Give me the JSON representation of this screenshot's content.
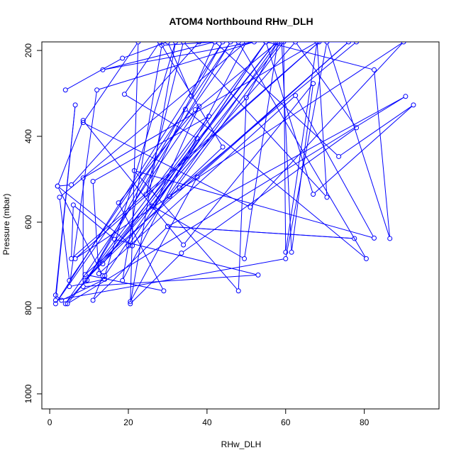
{
  "chart_data": {
    "type": "scatter",
    "title": "ATOM4 Northbound RHw_DLH",
    "xlabel": "RHw_DLH",
    "ylabel": "Pressure (mbar)",
    "xlim": [
      -2,
      99
    ],
    "ylim": [
      1035,
      180
    ],
    "y_reversed": true,
    "x_ticks": [
      "0",
      "20",
      "40",
      "60",
      "80"
    ],
    "x_tick_values": [
      0,
      20,
      40,
      60,
      80
    ],
    "y_ticks": [
      "200",
      "400",
      "600",
      "800",
      "1000"
    ],
    "y_tick_values": [
      200,
      400,
      600,
      800,
      1000
    ],
    "grid": false,
    "series": [
      {
        "color": "#0000ff",
        "marker": "open-circle",
        "connected": true,
        "points": [
          [
            4,
            292
          ],
          [
            18.5,
            218
          ],
          [
            30,
            180
          ],
          [
            36,
            306
          ],
          [
            42,
            180
          ],
          [
            13.5,
            245
          ],
          [
            52,
            180
          ],
          [
            12,
            292
          ],
          [
            5,
            750
          ],
          [
            14,
            733
          ],
          [
            3,
            782
          ],
          [
            1.5,
            770
          ],
          [
            6.5,
            327
          ],
          [
            1.5,
            782
          ],
          [
            60,
            685
          ],
          [
            70.5,
            180
          ],
          [
            86.5,
            638
          ],
          [
            82.5,
            245
          ],
          [
            55,
            180
          ],
          [
            26.5,
            565
          ],
          [
            38,
            330
          ],
          [
            4,
            790
          ],
          [
            62.5,
            180
          ],
          [
            78,
            380
          ],
          [
            33.5,
            672
          ],
          [
            20.5,
            790
          ],
          [
            32,
            180
          ],
          [
            14,
            725
          ],
          [
            37.5,
            405
          ],
          [
            19,
            302
          ],
          [
            28,
            180
          ],
          [
            44,
            425
          ],
          [
            33,
            520
          ],
          [
            9,
            735
          ],
          [
            40.5,
            353
          ],
          [
            11,
            505
          ],
          [
            12.5,
            720
          ],
          [
            62.5,
            305
          ],
          [
            82.5,
            637
          ],
          [
            21.5,
            480
          ],
          [
            48,
            760
          ],
          [
            50,
            310
          ],
          [
            58,
            180
          ],
          [
            37,
            338
          ],
          [
            17.5,
            555
          ],
          [
            29,
            760
          ],
          [
            9,
            722
          ],
          [
            76,
            180
          ],
          [
            37.5,
            495
          ],
          [
            20.5,
            785
          ],
          [
            22.5,
            180
          ],
          [
            8.5,
            368
          ],
          [
            51,
            565
          ],
          [
            90,
            180
          ],
          [
            6.5,
            685
          ],
          [
            68.5,
            180
          ],
          [
            5.5,
            685
          ],
          [
            6,
            560
          ],
          [
            16.5,
            640
          ],
          [
            53,
            723
          ],
          [
            8.5,
            750
          ],
          [
            8.5,
            497
          ],
          [
            68,
            180
          ],
          [
            70.5,
            542
          ],
          [
            34,
            180
          ],
          [
            24.5,
            535
          ],
          [
            34.5,
            337
          ],
          [
            80.5,
            685
          ],
          [
            48,
            180
          ],
          [
            1.5,
            790
          ],
          [
            44,
            180
          ],
          [
            9.5,
            735
          ],
          [
            46,
            180
          ],
          [
            5,
            736
          ],
          [
            2.5,
            542
          ],
          [
            50,
            180
          ],
          [
            18.5,
            736
          ],
          [
            28.5,
            188
          ],
          [
            42,
            180
          ],
          [
            73.5,
            447
          ],
          [
            92.5,
            327
          ],
          [
            67,
            535
          ],
          [
            55,
            180
          ],
          [
            13.5,
            697
          ],
          [
            57.5,
            180
          ],
          [
            4.5,
            790
          ],
          [
            90.5,
            307
          ],
          [
            30,
            610
          ],
          [
            77.5,
            638
          ],
          [
            30,
            610
          ],
          [
            11,
            782
          ],
          [
            13.5,
            725
          ],
          [
            2,
            516
          ],
          [
            8.5,
            363
          ],
          [
            34,
            653
          ],
          [
            67,
            277
          ],
          [
            61.5,
            670
          ],
          [
            59,
            180
          ],
          [
            26,
            562
          ],
          [
            49.5,
            685
          ],
          [
            58,
            180
          ],
          [
            21,
            655
          ],
          [
            2,
            516
          ],
          [
            5.5,
            513
          ],
          [
            38,
            180
          ],
          [
            78,
            180
          ],
          [
            30.5,
            540
          ],
          [
            59.5,
            180
          ],
          [
            60,
            670
          ],
          [
            68,
            180
          ],
          [
            55,
            180
          ],
          [
            20,
            655
          ]
        ]
      }
    ]
  }
}
